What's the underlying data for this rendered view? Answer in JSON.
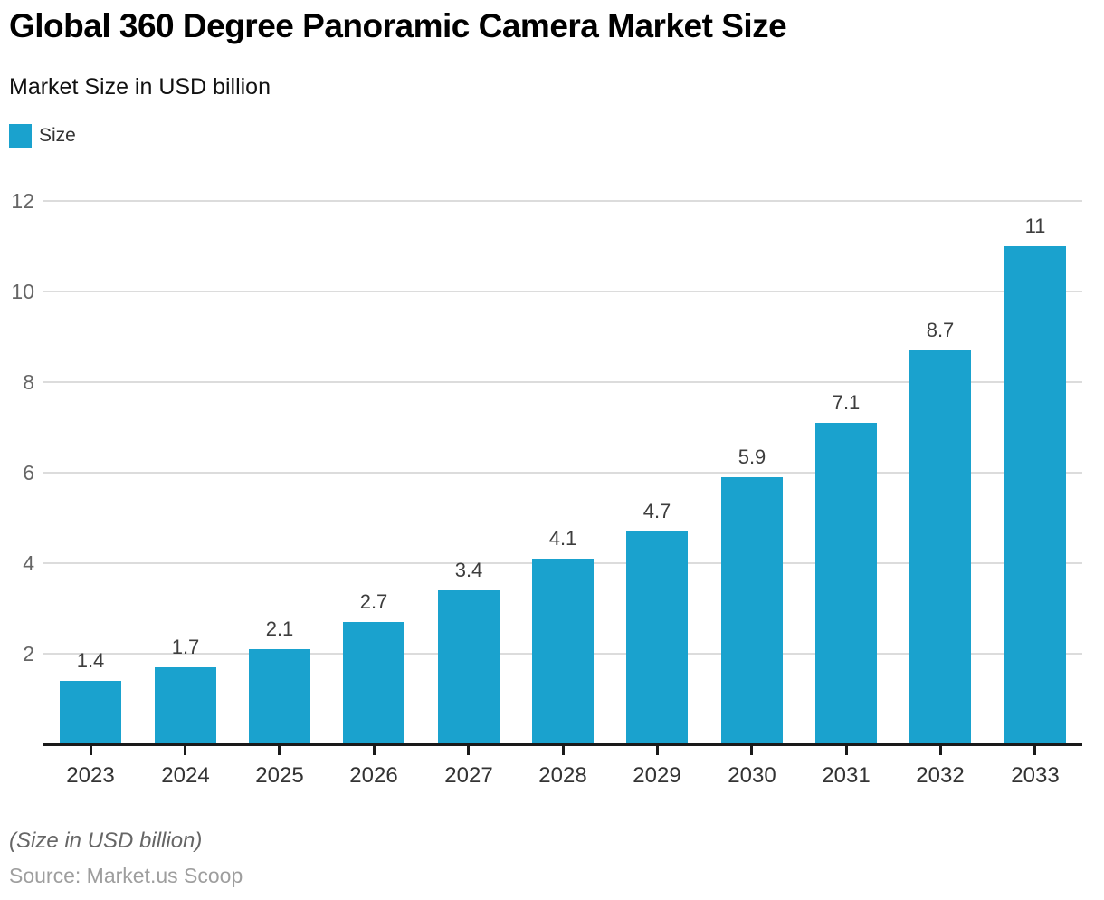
{
  "title": "Global 360 Degree Panoramic Camera Market Size",
  "subtitle": "Market Size in USD billion",
  "legend": {
    "label": "Size"
  },
  "footer": {
    "note": "(Size in USD billion)",
    "source": "Source: Market.us Scoop"
  },
  "colors": {
    "bar": "#1AA2CE",
    "grid": "#DCDCDC",
    "axis": "#1A1A1A",
    "tick": "#1A1A1A",
    "y_label": "#666666",
    "x_label": "#333333",
    "value_label": "#3D3D3D"
  },
  "chart_data": {
    "type": "bar",
    "title": "Global 360 Degree Panoramic Camera Market Size",
    "subtitle": "Market Size in USD billion",
    "series_name": "Size",
    "categories": [
      "2023",
      "2024",
      "2025",
      "2026",
      "2027",
      "2028",
      "2029",
      "2030",
      "2031",
      "2032",
      "2033"
    ],
    "values": [
      1.4,
      1.7,
      2.1,
      2.7,
      3.4,
      4.1,
      4.7,
      5.9,
      7.1,
      8.7,
      11
    ],
    "value_labels": [
      "1.4",
      "1.7",
      "2.1",
      "2.7",
      "3.4",
      "4.1",
      "4.7",
      "5.9",
      "7.1",
      "8.7",
      "11"
    ],
    "xlabel": "",
    "ylabel": "",
    "ylim": [
      0,
      12
    ],
    "yticks": [
      2,
      4,
      6,
      8,
      10,
      12
    ],
    "grid": true,
    "legend_position": "top-left",
    "unit_note": "(Size in USD billion)",
    "source": "Source: Market.us Scoop"
  }
}
